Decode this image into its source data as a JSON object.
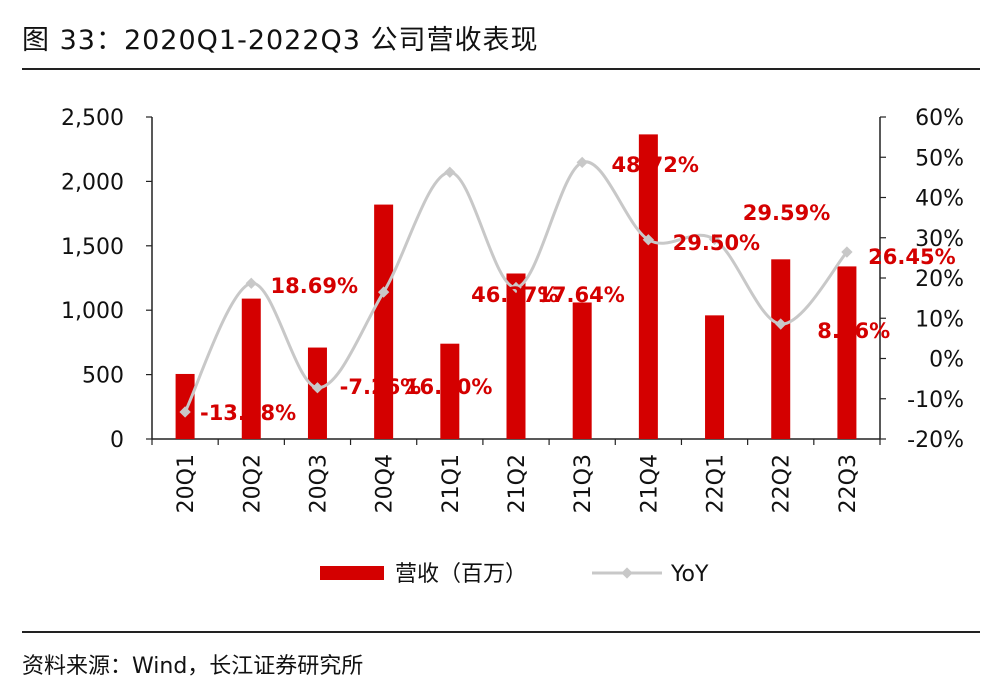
{
  "title": "图 33：2020Q1-2022Q3 公司营收表现",
  "source": "资料来源：Wind，长江证券研究所",
  "colors": {
    "bar": "#d40000",
    "line": "#c8c8c8",
    "label": "#d40000"
  },
  "chart_data": {
    "type": "bar+line",
    "categories": [
      "20Q1",
      "20Q2",
      "20Q3",
      "20Q4",
      "21Q1",
      "21Q2",
      "21Q3",
      "21Q4",
      "22Q1",
      "22Q2",
      "22Q3"
    ],
    "series": [
      {
        "name": "营收（百万）",
        "type": "bar",
        "axis": "left",
        "values": [
          505,
          1090,
          710,
          1820,
          740,
          1285,
          1060,
          2365,
          960,
          1395,
          1340
        ]
      },
      {
        "name": "YoY",
        "type": "line",
        "axis": "right",
        "values": [
          -13.28,
          18.69,
          -7.26,
          16.5,
          46.27,
          17.64,
          48.72,
          29.5,
          29.59,
          8.56,
          26.45
        ],
        "labels": [
          "-13.28%",
          "18.69%",
          "-7.26%",
          "16.50%",
          "46.27%",
          "17.64%",
          "48.72%",
          "29.50%",
          "29.59%",
          "8.56%",
          "26.45%"
        ]
      }
    ],
    "left_axis": {
      "min": 0,
      "max": 2500,
      "ticks": [
        0,
        500,
        1000,
        1500,
        2000,
        2500
      ],
      "tick_labels": [
        "0",
        "500",
        "1,000",
        "1,500",
        "2,000",
        "2,500"
      ]
    },
    "right_axis": {
      "min": -20,
      "max": 60,
      "ticks": [
        -20,
        -10,
        0,
        10,
        20,
        30,
        40,
        50,
        60
      ],
      "tick_labels": [
        "-20%",
        "-10%",
        "0%",
        "10%",
        "20%",
        "30%",
        "40%",
        "50%",
        "60%"
      ]
    },
    "legend": {
      "position": "bottom",
      "items": [
        "营收（百万）",
        "YoY"
      ]
    },
    "grid": false
  }
}
